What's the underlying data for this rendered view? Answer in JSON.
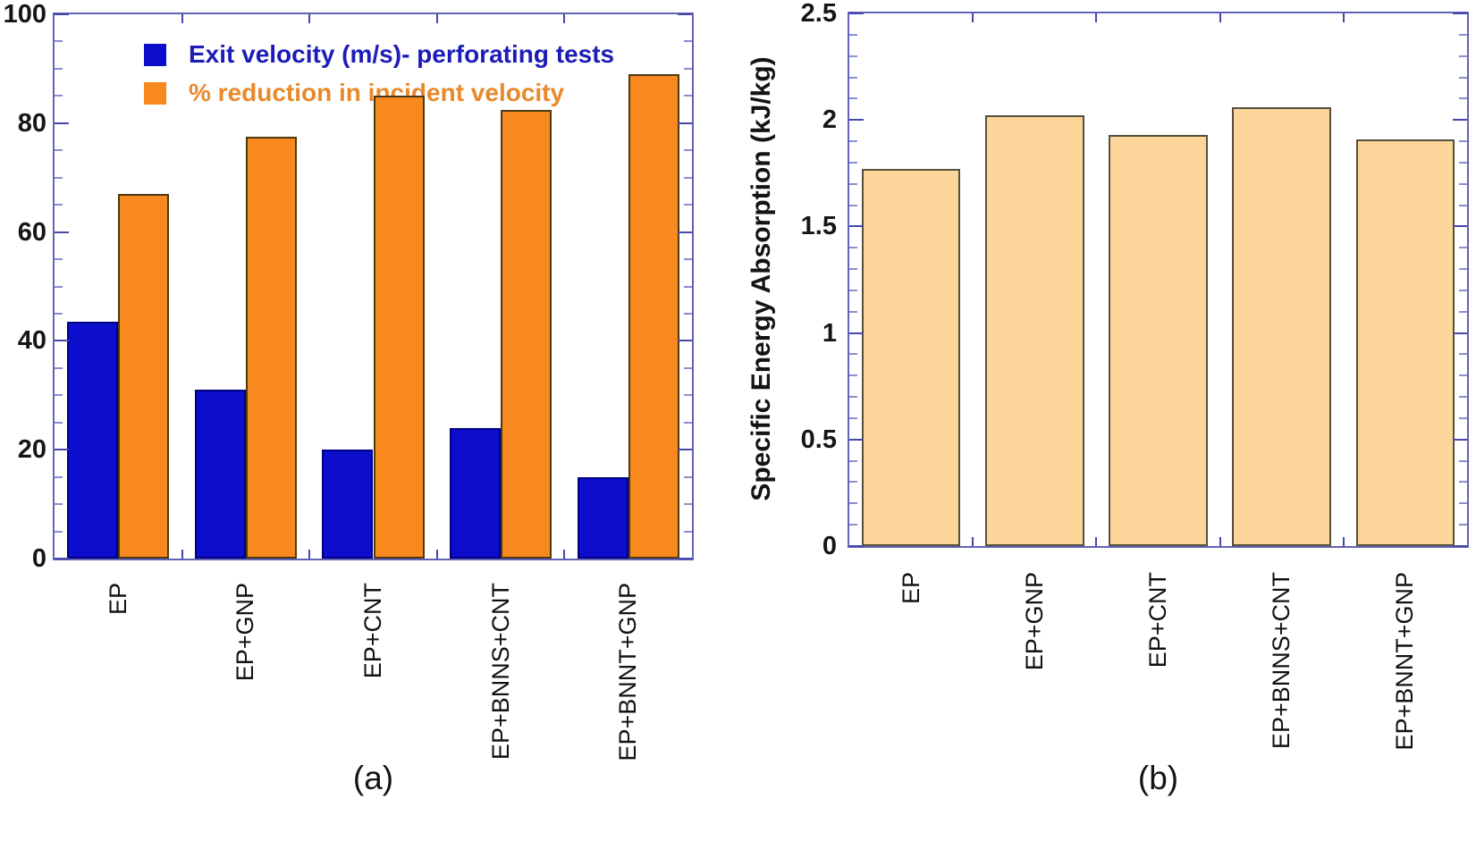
{
  "figure": {
    "caption_a": "(a)",
    "caption_b": "(b)",
    "background": "#ffffff",
    "axis_color": "#6262b8",
    "major_tick_color": "#4747a9",
    "minor_tick_color": "#8d8dcf"
  },
  "chart_data": [
    {
      "type": "bar",
      "panel": "a",
      "title": "",
      "categories": [
        "EP",
        "EP+GNP",
        "EP+CNT",
        "EP+BNNS+CNT",
        "EP+BNNT+GNP"
      ],
      "series": [
        {
          "name": "Exit velocity (m/s)- perforating tests",
          "color": "#0d0dce",
          "border_color": "#000080",
          "text_color": "#1c1cb8",
          "values": [
            43.5,
            31,
            20,
            24,
            15
          ]
        },
        {
          "name": "% reduction in incident velocity",
          "color": "#f8891e",
          "border_color": "#4a3a14",
          "text_color": "#e8892a",
          "values": [
            67,
            77.5,
            85,
            82.5,
            89
          ]
        }
      ],
      "xlabel": "",
      "ylabel": "",
      "ylim": [
        0,
        100
      ],
      "ytick_values": [
        0,
        20,
        40,
        60,
        80,
        100
      ],
      "ytick_labels": [
        "0",
        "20",
        "40",
        "60",
        "80",
        "100"
      ],
      "minor_step": 5,
      "grid": false,
      "legend_position": "top-left"
    },
    {
      "type": "bar",
      "panel": "b",
      "title": "",
      "categories": [
        "EP",
        "EP+GNP",
        "EP+CNT",
        "EP+BNNS+CNT",
        "EP+BNNT+GNP"
      ],
      "series": [
        {
          "name": "Specific Energy Absorption",
          "color": "#fcd59a",
          "border_color": "#55503d",
          "text_color": "#141414",
          "values": [
            1.77,
            2.02,
            1.93,
            2.06,
            1.91
          ]
        }
      ],
      "xlabel": "",
      "ylabel": "Specific Energy Absorption (kJ/kg)",
      "ylim": [
        0,
        2.5
      ],
      "ytick_values": [
        0,
        0.5,
        1,
        1.5,
        2,
        2.5
      ],
      "ytick_labels": [
        "0",
        "0.5",
        "1",
        "1.5",
        "2",
        "2.5"
      ],
      "minor_step": 0.1,
      "grid": false,
      "legend_position": "none"
    }
  ]
}
